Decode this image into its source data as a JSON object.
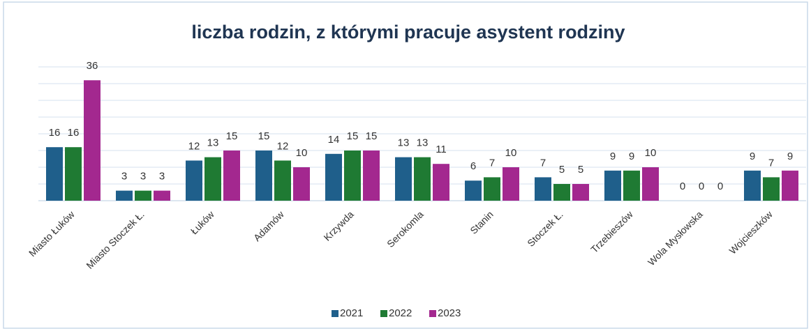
{
  "chart_data": {
    "type": "bar",
    "title": "liczba rodzin, z którymi pracuje asystent rodziny",
    "categories": [
      "Miasto Łuków",
      "Miasto Stoczek Ł.",
      "Łuków",
      "Adamów",
      "Krzywda",
      "Serokomla",
      "Stanin",
      "Stoczek Ł.",
      "Trzebieszów",
      "Wola Mysłowska",
      "Wojcieszków"
    ],
    "series": [
      {
        "name": "2021",
        "color": "#1f5f8b",
        "values": [
          16,
          3,
          12,
          15,
          14,
          13,
          6,
          7,
          9,
          0,
          9
        ]
      },
      {
        "name": "2022",
        "color": "#1f7a33",
        "values": [
          16,
          3,
          13,
          12,
          15,
          13,
          7,
          5,
          9,
          0,
          7
        ]
      },
      {
        "name": "2023",
        "color": "#a3288f",
        "values": [
          36,
          3,
          15,
          10,
          15,
          11,
          10,
          5,
          10,
          0,
          9
        ]
      }
    ],
    "ylim": [
      0,
      40
    ],
    "yticks": [
      0,
      5,
      10,
      15,
      20,
      25,
      30,
      35,
      40
    ],
    "grid": true,
    "legend": "bottom"
  }
}
